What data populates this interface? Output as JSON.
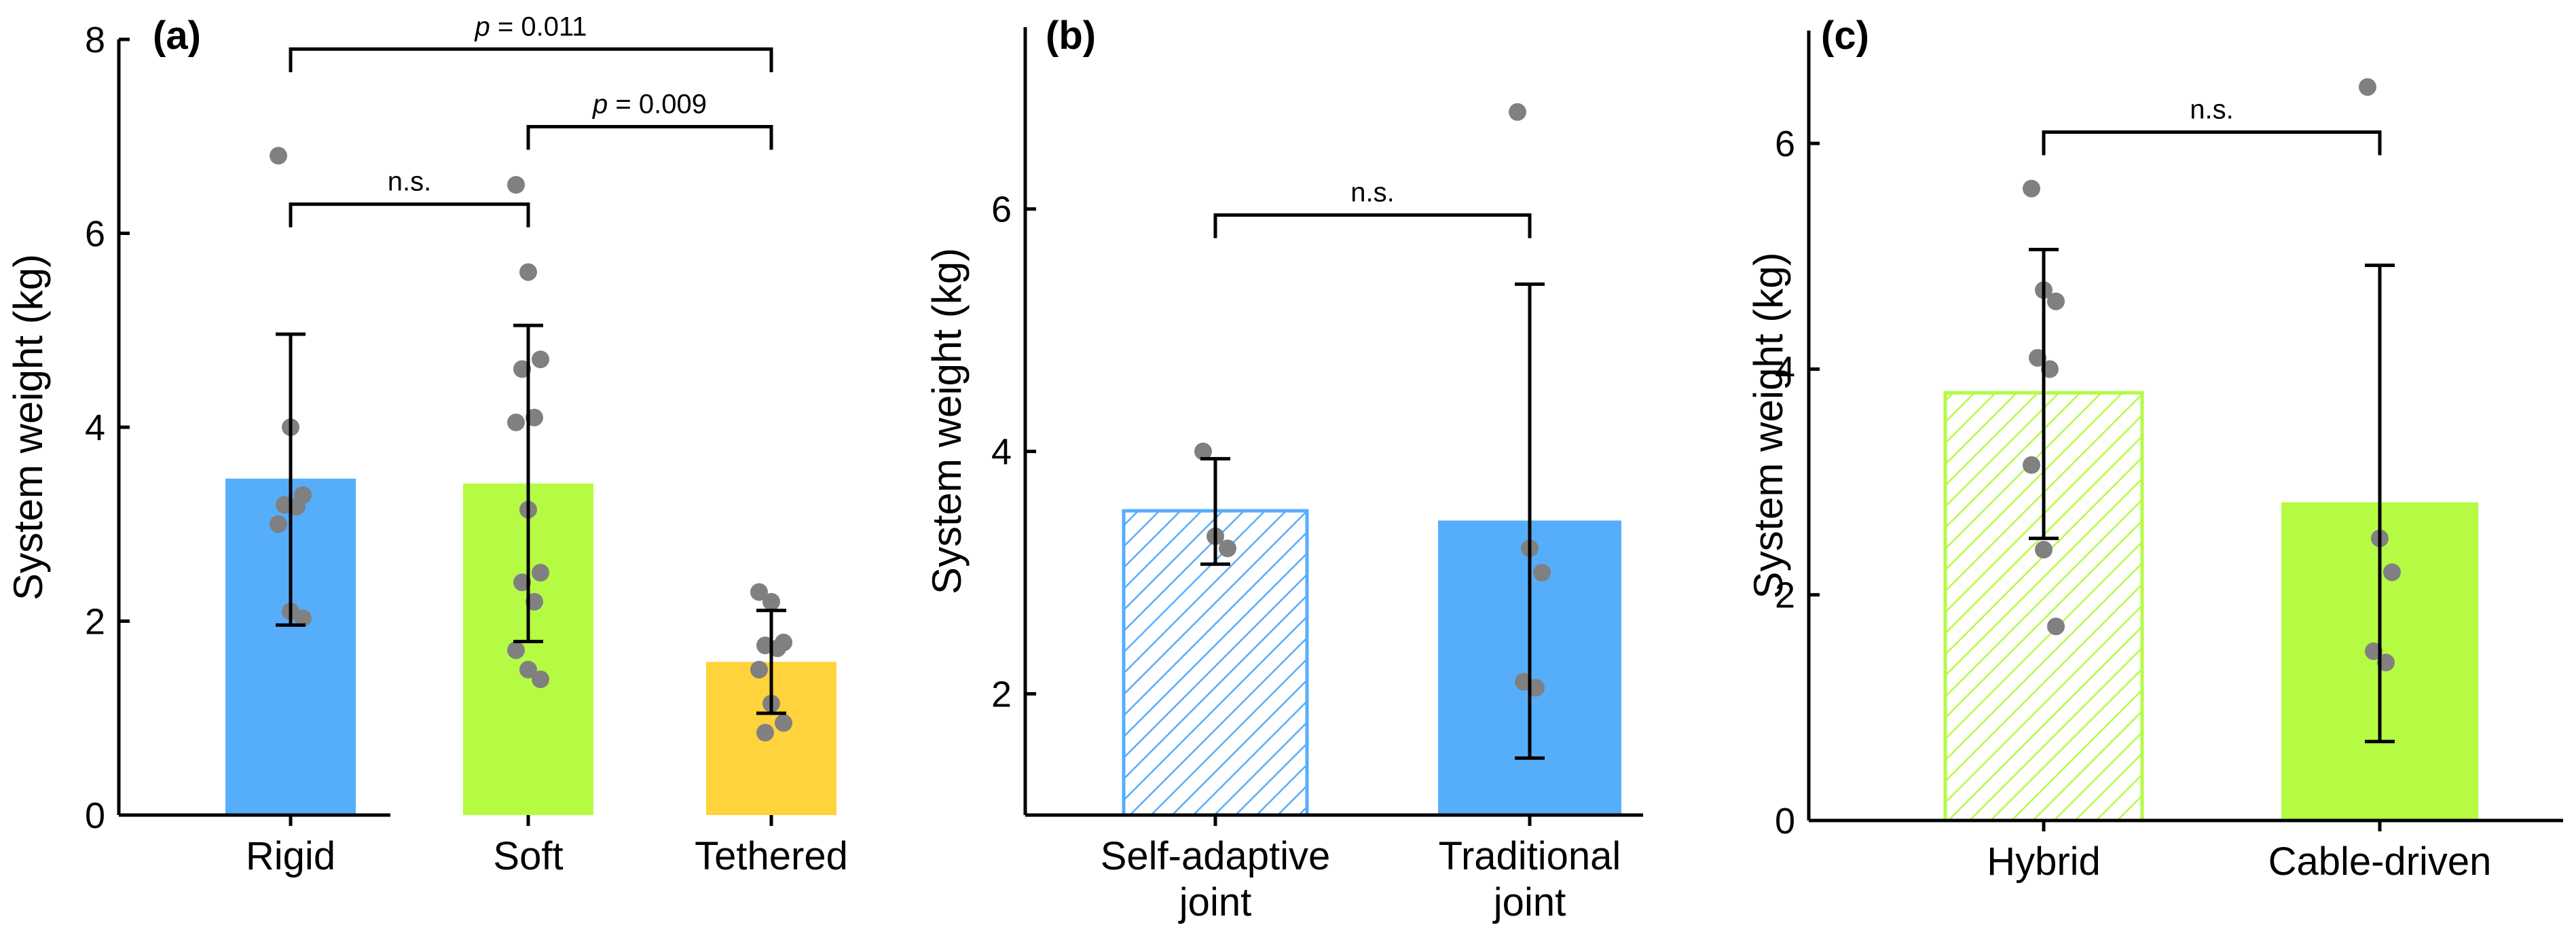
{
  "colors": {
    "blue": "#56aefb",
    "green": "#b5fb43",
    "yellow": "#fed33b",
    "point": "#808080",
    "axis": "#000000"
  },
  "chart_data": [
    {
      "type": "bar",
      "panel_label": "(a)",
      "ylabel": "System weight (kg)",
      "ylim": [
        0,
        8
      ],
      "yticks": [
        "0",
        "2",
        "4",
        "6",
        "8"
      ],
      "categories": [
        "Rigid",
        "Soft",
        "Tethered"
      ],
      "values": [
        3.47,
        3.42,
        1.58
      ],
      "errors": [
        {
          "low": 1.96,
          "high": 4.96
        },
        {
          "low": 1.79,
          "high": 5.05
        },
        {
          "low": 1.05,
          "high": 2.11
        }
      ],
      "bar_fill": [
        "solid",
        "solid",
        "solid"
      ],
      "bar_colors": [
        "blue",
        "green",
        "yellow"
      ],
      "points": [
        [
          6.8,
          4.0,
          3.3,
          3.2,
          3.18,
          3.0,
          2.1,
          2.03
        ],
        [
          6.5,
          5.6,
          4.7,
          4.6,
          4.1,
          4.05,
          3.15,
          2.5,
          2.4,
          2.2,
          1.7,
          1.5,
          1.4
        ],
        [
          2.3,
          2.2,
          1.78,
          1.75,
          1.72,
          1.5,
          1.15,
          0.95,
          0.85
        ]
      ],
      "annotations": [
        {
          "text": "n.s.",
          "italic_p": false,
          "from": 0,
          "to": 1,
          "y": 6.3
        },
        {
          "text": "p = 0.009",
          "italic_p": true,
          "from": 1,
          "to": 2,
          "y": 7.1
        },
        {
          "text": "p = 0.011",
          "italic_p": true,
          "from": 0,
          "to": 2,
          "y": 7.9
        }
      ]
    },
    {
      "type": "bar",
      "panel_label": "(b)",
      "ylabel": "System weight (kg)",
      "ylim": [
        1,
        7.5
      ],
      "yticks": [
        "2",
        "4",
        "6"
      ],
      "categories": [
        "Self-adaptive\njoint",
        "Traditional\njoint"
      ],
      "values": [
        3.51,
        3.43
      ],
      "errors": [
        {
          "low": 3.07,
          "high": 3.94
        },
        {
          "low": 1.47,
          "high": 5.38
        }
      ],
      "bar_fill": [
        "hatched",
        "solid"
      ],
      "bar_colors": [
        "blue",
        "blue"
      ],
      "points": [
        [
          4.0,
          3.3,
          3.2
        ],
        [
          6.8,
          3.2,
          3.0,
          2.1,
          2.05
        ]
      ],
      "annotations": [
        {
          "text": "n.s.",
          "italic_p": false,
          "from": 0,
          "to": 1,
          "y": 5.95
        }
      ]
    },
    {
      "type": "bar",
      "panel_label": "(c)",
      "ylabel": "System weight (kg)",
      "ylim": [
        0,
        7
      ],
      "yticks": [
        "0",
        "2",
        "4",
        "6"
      ],
      "categories": [
        "Hybrid",
        "Cable-driven"
      ],
      "values": [
        3.79,
        2.82
      ],
      "errors": [
        {
          "low": 2.5,
          "high": 5.06
        },
        {
          "low": 0.7,
          "high": 4.92
        }
      ],
      "bar_fill": [
        "hatched",
        "solid"
      ],
      "bar_colors": [
        "green",
        "green"
      ],
      "points": [
        [
          5.6,
          4.7,
          4.6,
          4.1,
          4.0,
          3.15,
          2.4,
          1.72
        ],
        [
          6.5,
          2.5,
          2.2,
          1.5,
          1.4
        ]
      ],
      "annotations": [
        {
          "text": "n.s.",
          "italic_p": false,
          "from": 0,
          "to": 1,
          "y": 6.1
        }
      ]
    }
  ]
}
